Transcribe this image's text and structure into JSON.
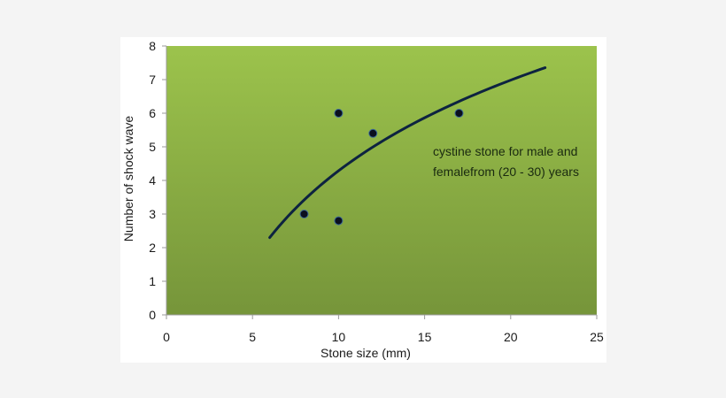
{
  "chart_data": {
    "type": "scatter",
    "title": "",
    "xlabel": "Stone size (mm)",
    "ylabel": "Number of shock wave",
    "xlim": [
      0,
      25
    ],
    "ylim": [
      0,
      8
    ],
    "x_ticks": [
      0,
      5,
      10,
      15,
      20,
      25
    ],
    "y_ticks": [
      0,
      1,
      2,
      3,
      4,
      5,
      6,
      7,
      8
    ],
    "grid": false,
    "legend": null,
    "series": [
      {
        "name": "data points",
        "type": "scatter",
        "points": [
          {
            "x": 8,
            "y": 3
          },
          {
            "x": 10,
            "y": 6
          },
          {
            "x": 10,
            "y": 2.8
          },
          {
            "x": 12,
            "y": 5.4
          },
          {
            "x": 17,
            "y": 6
          }
        ]
      },
      {
        "name": "logarithmic trendline",
        "type": "line",
        "x_range": [
          6,
          22
        ],
        "approx_equation": "y = 3.89 ln(x) - 4.67"
      }
    ],
    "annotations": [
      {
        "text_line1": "cystine stone for male and",
        "text_line2": "femalefrom (20 - 30) years",
        "x": 15.5,
        "y": 4.9
      }
    ],
    "colors": {
      "plot_bg_top": "#9cc34c",
      "plot_bg_bottom": "#76953a",
      "marker": "#0a0f1e",
      "marker_edge": "#3c6a9a",
      "trendline": "#0d2340"
    }
  }
}
